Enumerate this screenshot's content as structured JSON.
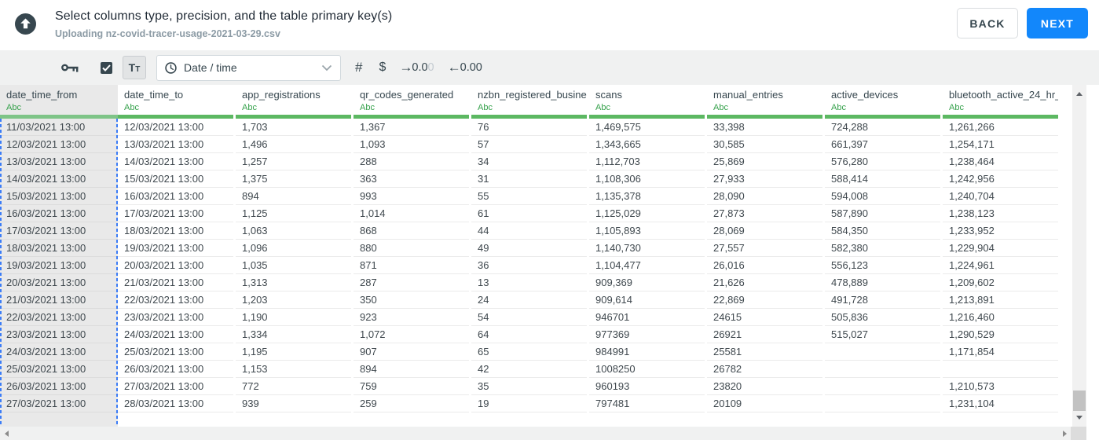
{
  "header": {
    "title": "Select columns type, precision, and the table primary key(s)",
    "subtitle": "Uploading nz-covid-tracer-usage-2021-03-29.csv",
    "back_label": "BACK",
    "next_label": "NEXT",
    "accent_color": "#1287fb"
  },
  "toolbar": {
    "key_icon": "primary-key-icon",
    "checkbox_checked": true,
    "text_format_big": "T",
    "text_format_small": "T",
    "type_dropdown_value": "Date / time",
    "number_label": "#",
    "currency_label": "$",
    "increase_decimal": {
      "arrow": "→",
      "main": "0.0",
      "faded": "0"
    },
    "decrease_decimal": {
      "arrow": "←",
      "value": "0.00"
    }
  },
  "table": {
    "type_badge": "Abc",
    "selected_column_index": 0,
    "selection_color": "#3b7cf7",
    "type_bar_color": "#5cb862",
    "columns": [
      "date_time_from",
      "date_time_to",
      "app_registrations",
      "qr_codes_generated",
      "nzbn_registered_busine",
      "scans",
      "manual_entries",
      "active_devices",
      "bluetooth_active_24_hr_"
    ],
    "rows": [
      [
        "11/03/2021 13:00",
        "12/03/2021 13:00",
        "1,703",
        "1,367",
        "76",
        "1,469,575",
        "33,398",
        "724,288",
        "1,261,266"
      ],
      [
        "12/03/2021 13:00",
        "13/03/2021 13:00",
        "1,496",
        "1,093",
        "57",
        "1,343,665",
        "30,585",
        "661,397",
        "1,254,171"
      ],
      [
        "13/03/2021 13:00",
        "14/03/2021 13:00",
        "1,257",
        "288",
        "34",
        "1,112,703",
        "25,869",
        "576,280",
        "1,238,464"
      ],
      [
        "14/03/2021 13:00",
        "15/03/2021 13:00",
        "1,375",
        "363",
        "31",
        "1,108,306",
        "27,933",
        "588,414",
        "1,242,956"
      ],
      [
        "15/03/2021 13:00",
        "16/03/2021 13:00",
        "894",
        "993",
        "55",
        "1,135,378",
        "28,090",
        "594,008",
        "1,240,704"
      ],
      [
        "16/03/2021 13:00",
        "17/03/2021 13:00",
        "1,125",
        "1,014",
        "61",
        "1,125,029",
        "27,873",
        "587,890",
        "1,238,123"
      ],
      [
        "17/03/2021 13:00",
        "18/03/2021 13:00",
        "1,063",
        "868",
        "44",
        "1,105,893",
        "28,069",
        "584,350",
        "1,233,952"
      ],
      [
        "18/03/2021 13:00",
        "19/03/2021 13:00",
        "1,096",
        "880",
        "49",
        "1,140,730",
        "27,557",
        "582,380",
        "1,229,904"
      ],
      [
        "19/03/2021 13:00",
        "20/03/2021 13:00",
        "1,035",
        "871",
        "36",
        "1,104,477",
        "26,016",
        "556,123",
        "1,224,961"
      ],
      [
        "20/03/2021 13:00",
        "21/03/2021 13:00",
        "1,313",
        "287",
        "13",
        "909,369",
        "21,626",
        "478,889",
        "1,209,602"
      ],
      [
        "21/03/2021 13:00",
        "22/03/2021 13:00",
        "1,203",
        "350",
        "24",
        "909,614",
        "22,869",
        "491,728",
        "1,213,891"
      ],
      [
        "22/03/2021 13:00",
        "23/03/2021 13:00",
        "1,190",
        "923",
        "54",
        "946701",
        "24615",
        "505,836",
        "1,216,460"
      ],
      [
        "23/03/2021 13:00",
        "24/03/2021 13:00",
        "1,334",
        "1,072",
        "64",
        "977369",
        "26921",
        "515,027",
        "1,290,529"
      ],
      [
        "24/03/2021 13:00",
        "25/03/2021 13:00",
        "1,195",
        "907",
        "65",
        "984991",
        "25581",
        "",
        "1,171,854"
      ],
      [
        "25/03/2021 13:00",
        "26/03/2021 13:00",
        "1,153",
        "894",
        "42",
        "1008250",
        "26782",
        "",
        ""
      ],
      [
        "26/03/2021 13:00",
        "27/03/2021 13:00",
        "772",
        "759",
        "35",
        "960193",
        "23820",
        "",
        "1,210,573"
      ],
      [
        "27/03/2021 13:00",
        "28/03/2021 13:00",
        "939",
        "259",
        "19",
        "797481",
        "20109",
        "",
        "1,231,104"
      ]
    ]
  }
}
